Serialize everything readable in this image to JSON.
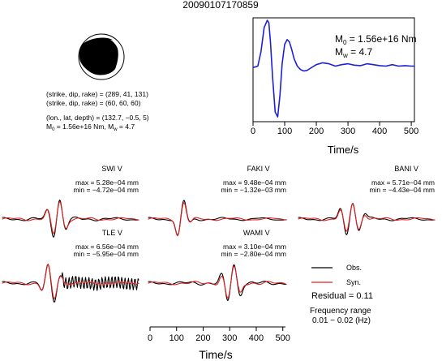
{
  "title": "20090107170859",
  "mechanism": {
    "line1": "(strike, dip, rake) = (289, 41, 131)",
    "line2": "(strike, dip, rake) = (60, 60, 60)",
    "line3": "(lon., lat, depth) = (132.7, −0.5, 5)",
    "line4_m": "M",
    "line4_msub": "0",
    "line4_mid": " = 1.56e+16 Nm, M",
    "line4_wsub": "w",
    "line4_end": " = 4.7"
  },
  "stf": {
    "m0_label": "M",
    "m0_sub": "0",
    "m0_value": " = 1.56e+16 Nm",
    "mw_label": "M",
    "mw_sub": "w",
    "mw_value": " = 4.7",
    "xlabel": "Time/s",
    "xticks": [
      "0",
      "100",
      "200",
      "300",
      "400",
      "500"
    ],
    "color": "#1f1fd6"
  },
  "stations": [
    {
      "name": "SWI V",
      "max": "max = 5.28e−04 mm",
      "min": "min = −4.72e−04 mm"
    },
    {
      "name": "FAKI V",
      "max": "max = 9.48e−04 mm",
      "min": "min = −1.32e−03 mm"
    },
    {
      "name": "BANI V",
      "max": "max = 5.71e−04 mm",
      "min": "min = −4.43e−04 mm"
    },
    {
      "name": "TLE V",
      "max": "max = 6.56e−04 mm",
      "min": "min = −5.95e−04 mm"
    },
    {
      "name": "WAMI V",
      "max": "max = 3.10e−04 mm",
      "min": "min = −2.80e−04 mm"
    }
  ],
  "legend": {
    "obs": "Obs.",
    "syn": "Syn.",
    "residual": "Residual = 0.11",
    "freq_line1": "Frequency range",
    "freq_line2": "0.01 − 0.02 (Hz)",
    "obs_color": "#000000",
    "syn_color": "#e02020"
  },
  "bottom_axis": {
    "xlabel": "Time/s",
    "xticks": [
      "0",
      "100",
      "200",
      "300",
      "400",
      "500"
    ]
  },
  "chart_data": [
    {
      "type": "line",
      "title": "",
      "xlabel": "Time/s",
      "ylabel": "",
      "xlim": [
        0,
        510
      ],
      "ylim": [
        -1.1,
        1.05
      ],
      "grid": false,
      "series": [
        {
          "x": [
            0,
            15,
            25,
            35,
            45,
            50,
            55,
            62,
            70,
            78,
            85,
            92,
            100,
            108,
            115,
            122,
            130,
            140,
            150,
            160,
            170,
            180,
            200,
            220,
            240,
            260,
            280,
            300,
            320,
            340,
            360,
            380,
            400,
            420,
            440,
            460,
            480,
            500,
            510
          ],
          "y": [
            0.02,
            0.05,
            0.35,
            0.85,
            1.0,
            0.95,
            0.55,
            -0.2,
            -0.9,
            -1.0,
            -0.55,
            0.1,
            0.5,
            0.6,
            0.55,
            0.4,
            0.2,
            0.05,
            -0.02,
            -0.05,
            -0.04,
            0.0,
            0.08,
            0.12,
            0.1,
            0.05,
            0.08,
            0.1,
            0.07,
            0.06,
            0.1,
            0.08,
            0.06,
            0.05,
            0.08,
            0.05,
            0.06,
            0.05,
            0.05
          ]
        }
      ]
    }
  ]
}
